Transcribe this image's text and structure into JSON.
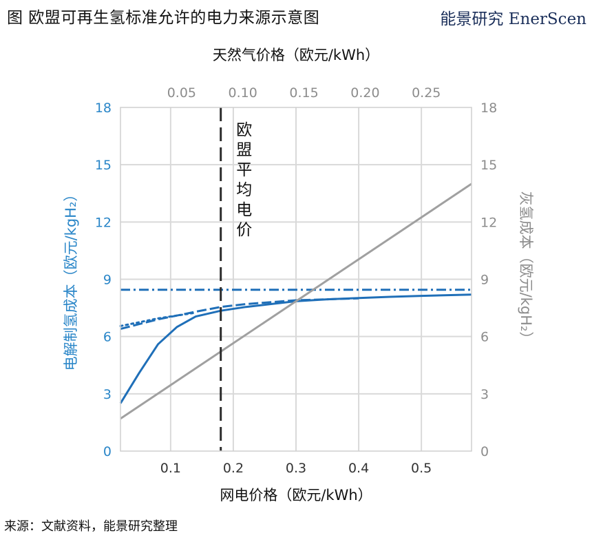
{
  "header": {
    "title": "图  欧盟可再生氢标准允许的电力来源示意图",
    "brand": "能景研究 EnerScen"
  },
  "footer": {
    "source": "来源：文献资料，能景研究整理"
  },
  "chart_data": {
    "type": "line",
    "title": "",
    "xlabel": "网电价格（欧元/kWh）",
    "x2label": "天然气价格（欧元/kWh）",
    "ylabel": "电解制氢成本（欧元/kgH₂）",
    "y2label": "灰氢成本（欧元/kgH₂）",
    "xlim": [
      0.02,
      0.58
    ],
    "x2lim": [
      0.0,
      0.287
    ],
    "ylim": [
      0,
      18
    ],
    "y2lim": [
      0,
      18
    ],
    "grid": true,
    "xticks": [
      0.1,
      0.2,
      0.3,
      0.4,
      0.5
    ],
    "xtick_labels": [
      "0.1",
      "0.2",
      "0.3",
      "0.4",
      "0.5"
    ],
    "x2ticks": [
      0.05,
      0.1,
      0.15,
      0.2,
      0.25
    ],
    "x2tick_labels": [
      "0.05",
      "0.10",
      "0.15",
      "0.20",
      "0.25"
    ],
    "yticks": [
      0,
      3,
      6,
      9,
      12,
      15,
      18
    ],
    "ytick_labels": [
      "0",
      "3",
      "6",
      "9",
      "12",
      "15",
      "18"
    ],
    "y2tick_labels": [
      "0",
      "3",
      "6",
      "9",
      "12",
      "15",
      "18"
    ],
    "vline": {
      "x": 0.18,
      "label": "欧盟平均电价"
    },
    "colors": {
      "blue": "#1f6fb8",
      "gray": "#a0a0a0",
      "tick_blue": "#2a86c8"
    },
    "series": [
      {
        "style": "solid",
        "color": "#1f6fb8",
        "x": [
          0.02,
          0.05,
          0.08,
          0.11,
          0.14,
          0.18,
          0.22,
          0.26,
          0.3,
          0.35,
          0.4,
          0.45,
          0.5,
          0.58
        ],
        "y": [
          2.5,
          4.1,
          5.6,
          6.5,
          7.05,
          7.35,
          7.55,
          7.7,
          7.85,
          7.95,
          8.02,
          8.08,
          8.13,
          8.2
        ]
      },
      {
        "style": "dashed",
        "color": "#1f6fb8",
        "x": [
          0.02,
          0.05,
          0.08,
          0.11,
          0.14,
          0.18,
          0.22,
          0.26,
          0.3,
          0.35,
          0.4
        ],
        "y": [
          6.4,
          6.65,
          6.9,
          7.1,
          7.3,
          7.55,
          7.7,
          7.8,
          7.9,
          7.95,
          8.0
        ]
      },
      {
        "style": "dotted",
        "color": "#1f6fb8",
        "x": [
          0.02,
          0.05,
          0.08,
          0.11,
          0.14
        ],
        "y": [
          6.55,
          6.75,
          6.95,
          7.1,
          7.25
        ]
      },
      {
        "style": "dashdot",
        "color": "#1f6fb8",
        "x": [
          0.02,
          0.58
        ],
        "y": [
          8.45,
          8.45
        ]
      },
      {
        "style": "solid",
        "color": "#a0a0a0",
        "axis": "secondary",
        "x": [
          0.02,
          0.58
        ],
        "y": [
          1.7,
          14.0
        ]
      }
    ]
  }
}
